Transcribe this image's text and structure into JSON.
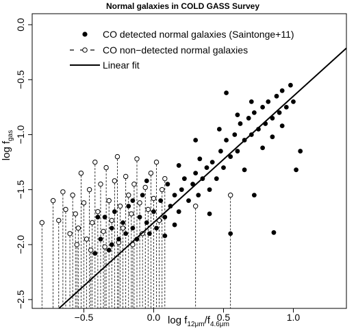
{
  "chart_data": {
    "type": "scatter",
    "title": "Normal galaxies in COLD GASS Survey",
    "xlabel_main": "log f",
    "xlabel_sub1": "12μm",
    "xlabel_slash": "/f",
    "xlabel_sub2": "4.6μm",
    "ylabel_main": "log f",
    "ylabel_sub": "gas",
    "xlim": [
      -0.87,
      1.38
    ],
    "ylim": [
      -2.58,
      0.1
    ],
    "x_ticks": [
      -0.5,
      0.0,
      0.5,
      1.0
    ],
    "x_tick_labels": [
      "−0.5",
      "0.0",
      "0.5",
      "1.0"
    ],
    "y_ticks": [
      -2.5,
      -2.0,
      -1.5,
      -1.0,
      -0.5,
      0.0
    ],
    "y_tick_labels": [
      "−2.5",
      "−2.0",
      "−1.5",
      "−1.0",
      "−0.5",
      "0.0"
    ],
    "legend": {
      "position": "top-center",
      "entries": [
        {
          "label": "CO detected normal galaxies (Saintonge+11)",
          "marker": "filled-circle"
        },
        {
          "label": "CO non−detected normal galaxies",
          "marker": "open-circle-dashed"
        },
        {
          "label": "Linear fit",
          "marker": "line"
        }
      ]
    },
    "fit": {
      "slope": 1.15,
      "intercept": -1.8
    },
    "detected": [
      [
        -0.4,
        -1.75
      ],
      [
        -0.38,
        -1.95
      ],
      [
        -0.35,
        -1.75
      ],
      [
        -0.32,
        -2.05
      ],
      [
        -0.3,
        -1.85
      ],
      [
        -0.28,
        -1.7
      ],
      [
        -0.25,
        -1.95
      ],
      [
        -0.22,
        -1.8
      ],
      [
        -0.2,
        -1.9
      ],
      [
        -0.18,
        -1.65
      ],
      [
        -0.15,
        -1.85
      ],
      [
        -0.12,
        -1.95
      ],
      [
        -0.1,
        -1.75
      ],
      [
        -0.08,
        -1.55
      ],
      [
        -0.05,
        -1.8
      ],
      [
        -0.03,
        -1.9
      ],
      [
        0.0,
        -1.7
      ],
      [
        0.02,
        -1.85
      ],
      [
        0.05,
        -1.6
      ],
      [
        0.08,
        -1.75
      ],
      [
        0.1,
        -1.45
      ],
      [
        0.12,
        -1.65
      ],
      [
        0.15,
        -1.55
      ],
      [
        0.18,
        -1.7
      ],
      [
        0.2,
        -1.5
      ],
      [
        0.22,
        -1.4
      ],
      [
        0.25,
        -1.6
      ],
      [
        0.28,
        -1.45
      ],
      [
        0.3,
        -1.35
      ],
      [
        0.32,
        -1.55
      ],
      [
        0.35,
        -1.4
      ],
      [
        0.38,
        -1.3
      ],
      [
        0.4,
        -1.5
      ],
      [
        0.42,
        -1.25
      ],
      [
        0.45,
        -1.4
      ],
      [
        0.48,
        -1.15
      ],
      [
        0.5,
        -1.3
      ],
      [
        0.52,
        -1.05
      ],
      [
        0.55,
        -1.2
      ],
      [
        0.58,
        -1.0
      ],
      [
        0.6,
        -1.15
      ],
      [
        0.62,
        -0.9
      ],
      [
        0.65,
        -1.05
      ],
      [
        0.68,
        -0.85
      ],
      [
        0.7,
        -1.0
      ],
      [
        0.72,
        -0.8
      ],
      [
        0.75,
        -0.95
      ],
      [
        0.78,
        -0.75
      ],
      [
        0.8,
        -0.9
      ],
      [
        0.82,
        -0.7
      ],
      [
        0.85,
        -0.85
      ],
      [
        0.88,
        -0.65
      ],
      [
        0.9,
        -0.8
      ],
      [
        0.92,
        -0.6
      ],
      [
        0.95,
        -0.75
      ],
      [
        0.98,
        -0.55
      ],
      [
        1.0,
        -0.7
      ],
      [
        0.52,
        -0.62
      ],
      [
        0.55,
        -1.9
      ],
      [
        0.72,
        -1.55
      ],
      [
        0.86,
        -1.89
      ],
      [
        1.05,
        -1.15
      ],
      [
        1.02,
        -1.32
      ],
      [
        0.3,
        -1.05
      ],
      [
        -0.05,
        -1.42
      ],
      [
        0.08,
        -1.92
      ],
      [
        0.4,
        -1.72
      ],
      [
        0.65,
        -1.32
      ],
      [
        0.78,
        -1.12
      ],
      [
        0.85,
        -1.02
      ],
      [
        0.92,
        -0.92
      ],
      [
        0.7,
        -0.7
      ],
      [
        0.6,
        -0.82
      ],
      [
        0.47,
        -0.95
      ],
      [
        0.33,
        -1.22
      ],
      [
        0.18,
        -1.28
      ],
      [
        -0.15,
        -1.6
      ],
      [
        -0.3,
        -2.0
      ],
      [
        -0.42,
        -2.08
      ],
      [
        0.15,
        -1.82
      ]
    ],
    "nondetected": [
      [
        -0.8,
        -1.8
      ],
      [
        -0.72,
        -1.6
      ],
      [
        -0.68,
        -1.78
      ],
      [
        -0.65,
        -1.52
      ],
      [
        -0.63,
        -1.68
      ],
      [
        -0.6,
        -1.9
      ],
      [
        -0.58,
        -1.55
      ],
      [
        -0.56,
        -1.72
      ],
      [
        -0.54,
        -1.85
      ],
      [
        -0.52,
        -1.35
      ],
      [
        -0.5,
        -1.62
      ],
      [
        -0.48,
        -1.95
      ],
      [
        -0.46,
        -1.5
      ],
      [
        -0.44,
        -1.8
      ],
      [
        -0.42,
        -1.25
      ],
      [
        -0.4,
        -1.7
      ],
      [
        -0.38,
        -1.45
      ],
      [
        -0.36,
        -1.88
      ],
      [
        -0.34,
        -1.3
      ],
      [
        -0.32,
        -1.6
      ],
      [
        -0.3,
        -1.78
      ],
      [
        -0.28,
        -1.42
      ],
      [
        -0.26,
        -1.2
      ],
      [
        -0.24,
        -1.65
      ],
      [
        -0.22,
        -1.85
      ],
      [
        -0.2,
        -1.38
      ],
      [
        -0.18,
        -1.55
      ],
      [
        -0.16,
        -1.72
      ],
      [
        -0.14,
        -1.45
      ],
      [
        -0.12,
        -1.22
      ],
      [
        -0.1,
        -1.62
      ],
      [
        -0.08,
        -1.9
      ],
      [
        -0.06,
        -1.48
      ],
      [
        -0.04,
        -1.68
      ],
      [
        -0.02,
        -1.35
      ],
      [
        0.0,
        -1.58
      ],
      [
        0.02,
        -1.25
      ],
      [
        0.04,
        -1.78
      ],
      [
        0.06,
        -1.5
      ],
      [
        0.08,
        -1.4
      ],
      [
        -0.55,
        -2.0
      ],
      [
        -0.45,
        -2.05
      ],
      [
        -0.35,
        -2.02
      ],
      [
        -0.25,
        -1.98
      ],
      [
        -0.15,
        -2.0
      ],
      [
        0.3,
        -1.65
      ],
      [
        0.55,
        -1.55
      ]
    ]
  }
}
